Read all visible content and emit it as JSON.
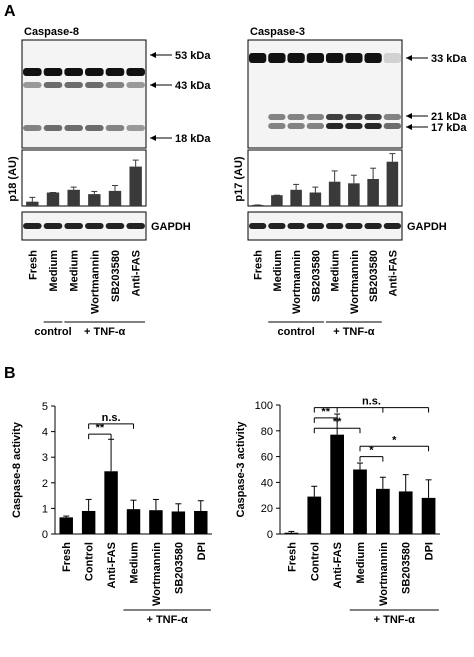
{
  "panel_labels": [
    "A",
    "B"
  ],
  "chart_data": [
    {
      "type": "bar",
      "blot_title": "Caspase-8",
      "band_labels": [
        "53 kDa",
        "43 kDa",
        "18 kDa"
      ],
      "ylabel": "p18 (AU)",
      "loading_control": "GAPDH",
      "categories": [
        "Fresh",
        "Medium",
        "Medium",
        "Wortmannin",
        "SB203580",
        "Anti-FAS"
      ],
      "values": [
        0.08,
        0.25,
        0.3,
        0.22,
        0.28,
        0.73
      ],
      "errors": [
        0.08,
        0,
        0.05,
        0.05,
        0.1,
        0.12
      ],
      "ylim": [
        0,
        1
      ],
      "group_labels": [
        "control",
        "+ TNF-α"
      ],
      "color": "#3a3a3a"
    },
    {
      "type": "bar",
      "blot_title": "Caspase-3",
      "band_labels": [
        "33 kDa",
        "21 kDa",
        "17 kDa"
      ],
      "ylabel": "p17 (AU)",
      "loading_control": "GAPDH",
      "categories": [
        "Fresh",
        "Medium",
        "Wortmannin",
        "SB203580",
        "Medium",
        "Wortmannin",
        "SB203580",
        "Anti-FAS"
      ],
      "values": [
        0.02,
        0.2,
        0.3,
        0.25,
        0.45,
        0.42,
        0.5,
        0.82
      ],
      "errors": [
        0,
        0,
        0.1,
        0.1,
        0.2,
        0.15,
        0.2,
        0.15
      ],
      "ylim": [
        0,
        1
      ],
      "group_labels": [
        "control",
        "+ TNF-α"
      ],
      "color": "#3a3a3a"
    },
    {
      "type": "bar",
      "ylabel": "Caspase-8 activity",
      "categories": [
        "Fresh",
        "Control",
        "Anti-FAS",
        "Medium",
        "Wortmannin",
        "SB203580",
        "DPI"
      ],
      "values": [
        0.65,
        0.9,
        2.45,
        0.97,
        0.93,
        0.88,
        0.9
      ],
      "errors": [
        0.05,
        0.45,
        1.25,
        0.35,
        0.42,
        0.3,
        0.4
      ],
      "ylim": [
        0,
        5
      ],
      "yticks": [
        0,
        1,
        2,
        3,
        4,
        5
      ],
      "annotations": [
        "**",
        "n.s."
      ],
      "group_labels": [
        "+ TNF-α"
      ],
      "color": "#000000"
    },
    {
      "type": "bar",
      "ylabel": "Caspase-3 activity",
      "categories": [
        "Fresh",
        "Control",
        "Anti-FAS",
        "Medium",
        "Wortmannin",
        "SB203580",
        "DPI"
      ],
      "values": [
        1,
        29,
        77,
        50,
        35,
        33,
        28
      ],
      "errors": [
        1,
        8,
        16,
        5,
        9,
        13,
        14
      ],
      "ylim": [
        0,
        100
      ],
      "yticks": [
        0,
        20,
        40,
        60,
        80,
        100
      ],
      "annotations": [
        "n.s.",
        "**",
        "**",
        "*",
        "*"
      ],
      "group_labels": [
        "+ TNF-α"
      ],
      "color": "#000000"
    }
  ]
}
